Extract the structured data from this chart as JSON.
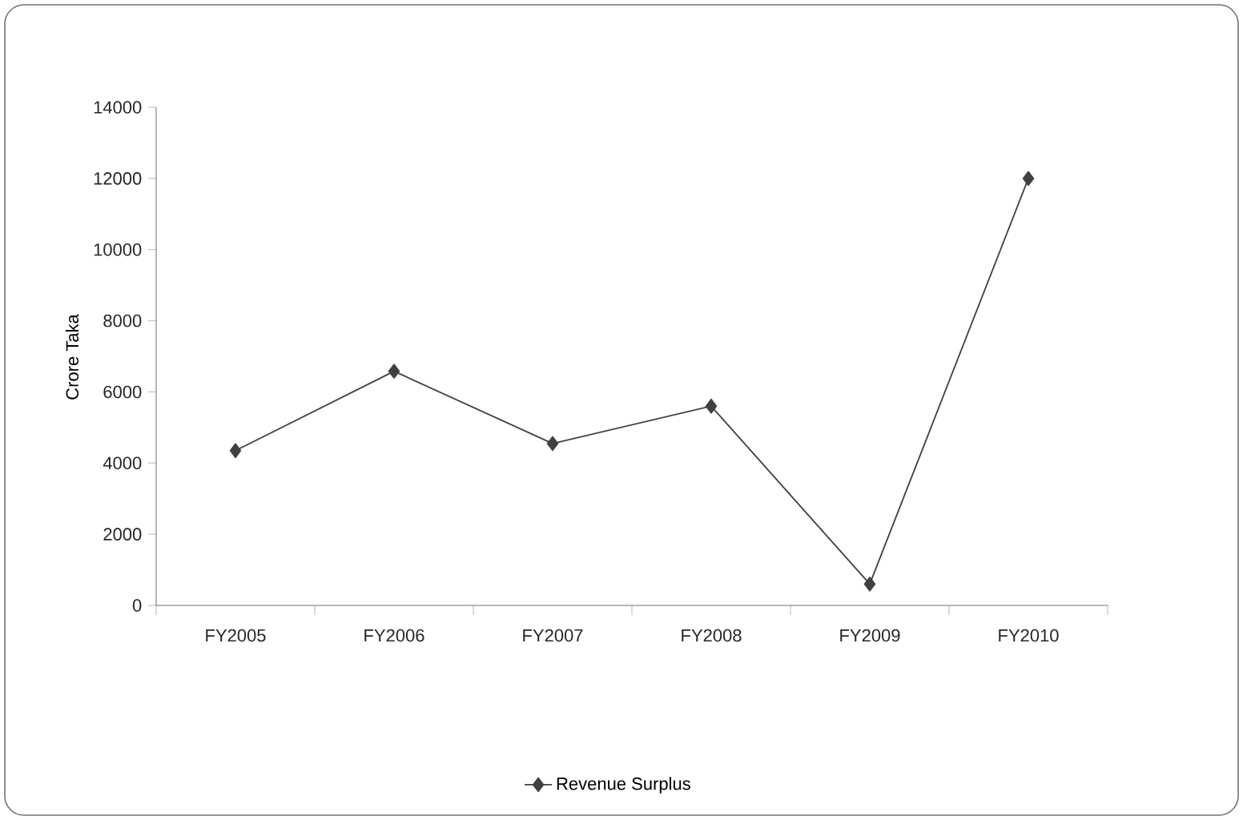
{
  "chart_data": {
    "type": "line",
    "ylabel": "Crore Taka",
    "categories": [
      "FY2005",
      "FY2006",
      "FY2007",
      "FY2008",
      "FY2009",
      "FY2010"
    ],
    "series": [
      {
        "name": "Revenue Surplus",
        "color": "#404040",
        "values": [
          4350,
          6580,
          4550,
          5600,
          600,
          12000
        ]
      }
    ],
    "ylim": [
      0,
      14000
    ],
    "yticks": [
      0,
      2000,
      4000,
      6000,
      8000,
      10000,
      12000,
      14000
    ],
    "grid": false,
    "legend": "bottom",
    "marker": "diamond",
    "line_style": "solid"
  }
}
